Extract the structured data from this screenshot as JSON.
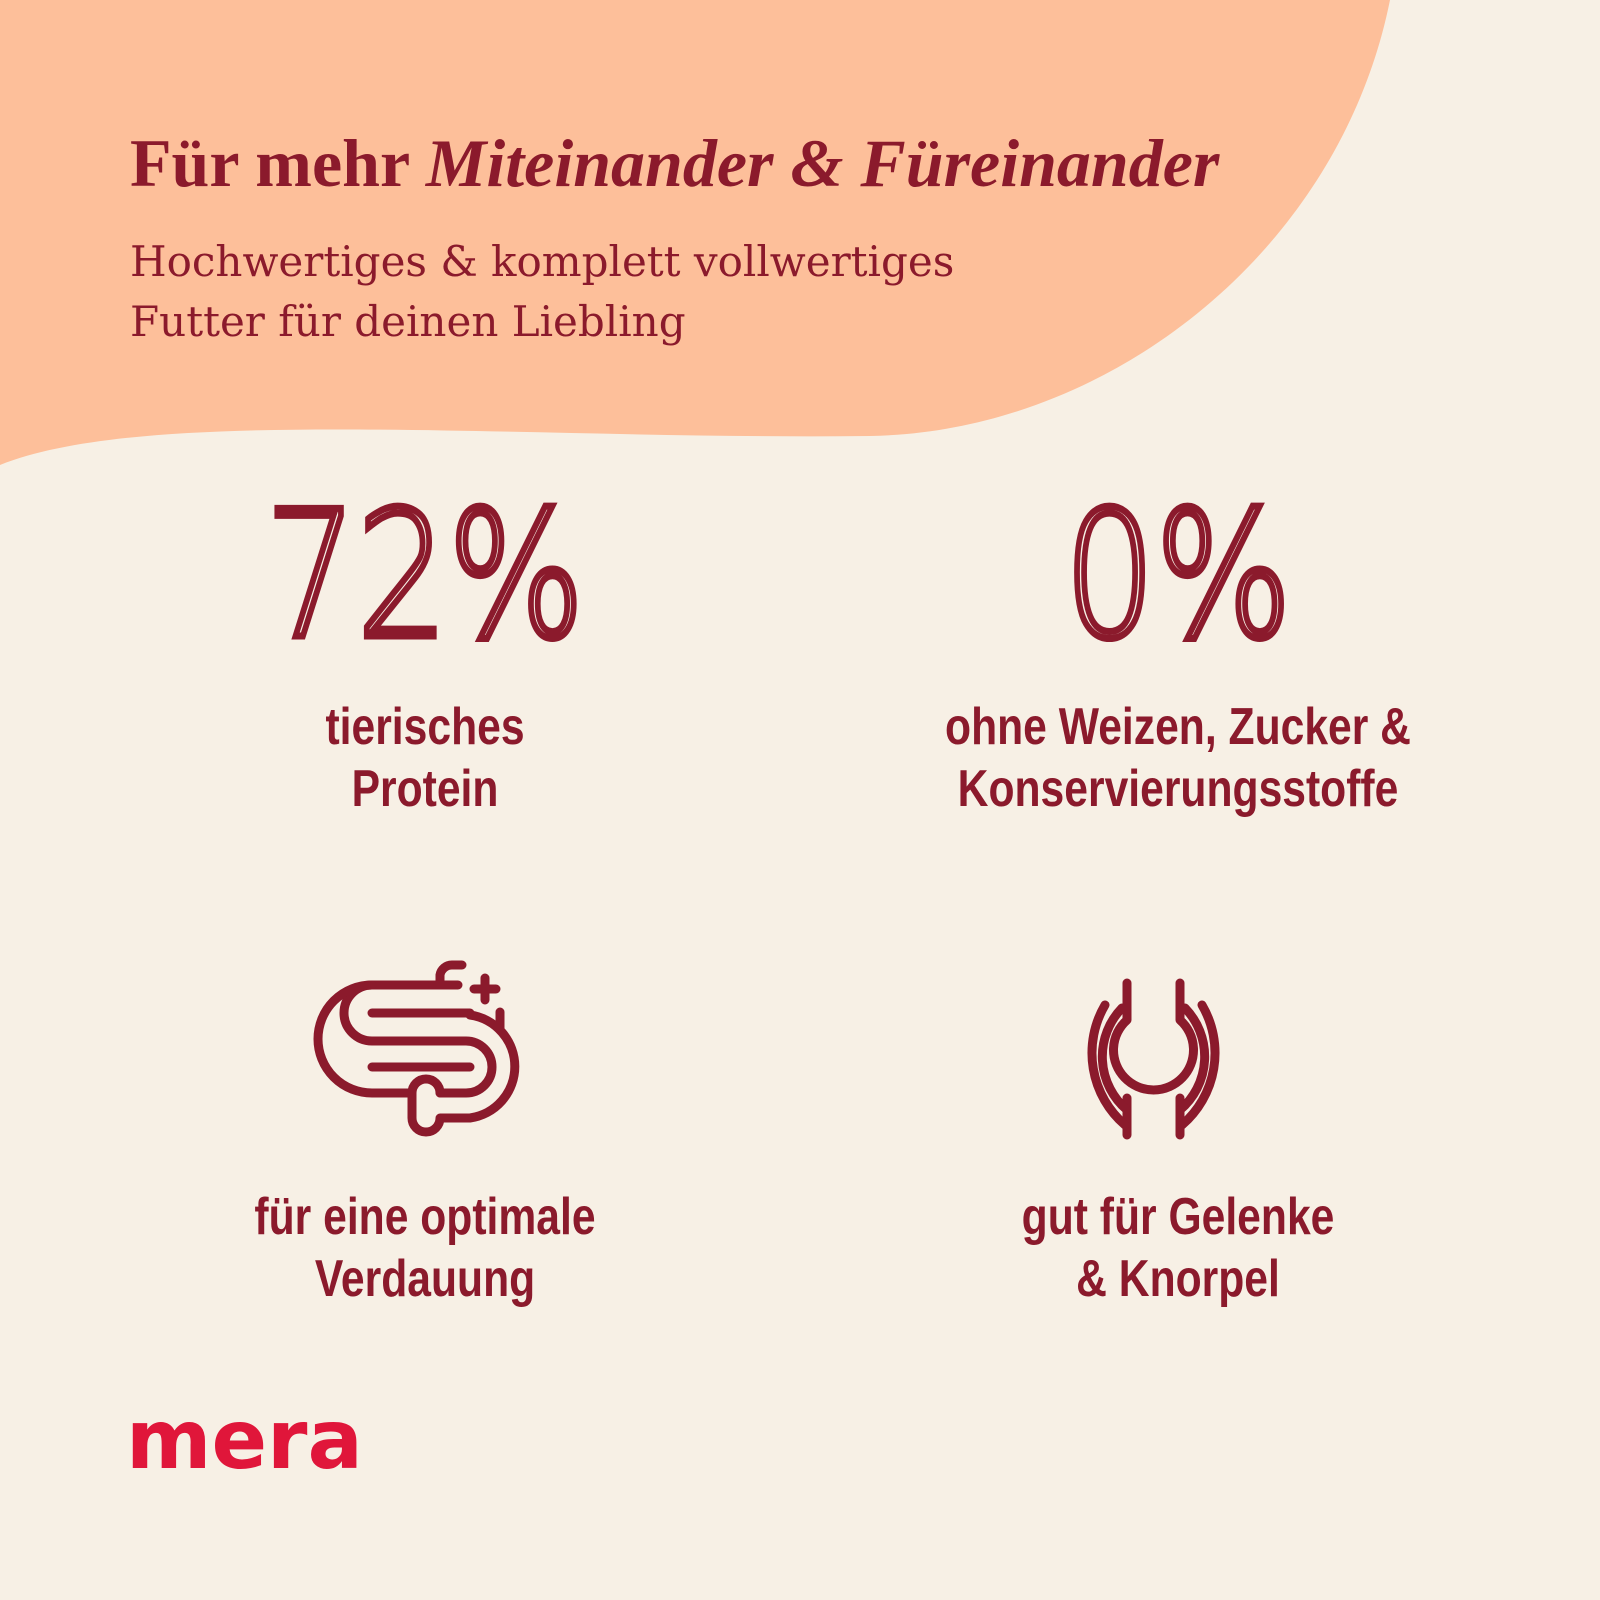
{
  "header": {
    "title": {
      "plain": "Für mehr",
      "emphasis": "Miteinander & Füreinander"
    },
    "subtitle": [
      "Hochwertiges & komplett vollwertiges",
      "Futter für deinen Liebling"
    ]
  },
  "features": [
    {
      "figure": "72%",
      "label": [
        "tierisches",
        "Protein"
      ]
    },
    {
      "figure": "0%",
      "label": [
        "ohne Weizen, Zucker &",
        "Konservierungsstoffe"
      ]
    },
    {
      "label": [
        "für eine optimale",
        "Verdauung"
      ]
    },
    {
      "label": [
        "gut für Gelenke",
        "& Knorpel"
      ]
    }
  ],
  "logo": "mera"
}
